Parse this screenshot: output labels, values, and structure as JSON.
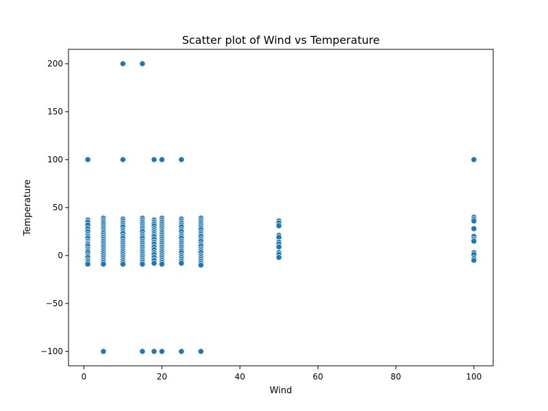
{
  "chart_data": {
    "type": "scatter",
    "title": "Scatter plot of Wind vs Temperature",
    "xlabel": "Wind",
    "ylabel": "Temperature",
    "xlim": [
      -3.95,
      104.95
    ],
    "ylim": [
      -115,
      215
    ],
    "x_ticks": [
      0,
      20,
      40,
      60,
      80,
      100
    ],
    "y_ticks": [
      -100,
      -50,
      0,
      50,
      100,
      150,
      200
    ],
    "grid": false,
    "point_color": "#1f77b4",
    "series": [
      {
        "points": [
          [
            1,
            100
          ],
          [
            1,
            37
          ],
          [
            1,
            35
          ],
          [
            1,
            32
          ],
          [
            1,
            28
          ],
          [
            1,
            25
          ],
          [
            1,
            22
          ],
          [
            1,
            20
          ],
          [
            1,
            18
          ],
          [
            1,
            15
          ],
          [
            1,
            13
          ],
          [
            1,
            12
          ],
          [
            1,
            10
          ],
          [
            1,
            7
          ],
          [
            1,
            5
          ],
          [
            1,
            3
          ],
          [
            1,
            0
          ],
          [
            1,
            -2
          ],
          [
            1,
            -5
          ],
          [
            1,
            -7
          ],
          [
            1,
            -9
          ],
          [
            5,
            39
          ],
          [
            5,
            37
          ],
          [
            5,
            35
          ],
          [
            5,
            33
          ],
          [
            5,
            31
          ],
          [
            5,
            29
          ],
          [
            5,
            27
          ],
          [
            5,
            25
          ],
          [
            5,
            23
          ],
          [
            5,
            21
          ],
          [
            5,
            19
          ],
          [
            5,
            17
          ],
          [
            5,
            15
          ],
          [
            5,
            13
          ],
          [
            5,
            11
          ],
          [
            5,
            9
          ],
          [
            5,
            7
          ],
          [
            5,
            5
          ],
          [
            5,
            3
          ],
          [
            5,
            1
          ],
          [
            5,
            -1
          ],
          [
            5,
            -3
          ],
          [
            5,
            -5
          ],
          [
            5,
            -7
          ],
          [
            5,
            -9
          ],
          [
            5,
            -100
          ],
          [
            10,
            200
          ],
          [
            10,
            100
          ],
          [
            10,
            38
          ],
          [
            10,
            36
          ],
          [
            10,
            34
          ],
          [
            10,
            32
          ],
          [
            10,
            30
          ],
          [
            10,
            27
          ],
          [
            10,
            25
          ],
          [
            10,
            23
          ],
          [
            10,
            20
          ],
          [
            10,
            18
          ],
          [
            10,
            15
          ],
          [
            10,
            13
          ],
          [
            10,
            11
          ],
          [
            10,
            9
          ],
          [
            10,
            7
          ],
          [
            10,
            5
          ],
          [
            10,
            3
          ],
          [
            10,
            1
          ],
          [
            10,
            -1
          ],
          [
            10,
            -3
          ],
          [
            10,
            -5
          ],
          [
            10,
            -7
          ],
          [
            10,
            -9
          ],
          [
            15,
            200
          ],
          [
            15,
            39
          ],
          [
            15,
            37
          ],
          [
            15,
            35
          ],
          [
            15,
            33
          ],
          [
            15,
            31
          ],
          [
            15,
            29
          ],
          [
            15,
            27
          ],
          [
            15,
            25
          ],
          [
            15,
            22
          ],
          [
            15,
            20
          ],
          [
            15,
            18
          ],
          [
            15,
            15
          ],
          [
            15,
            13
          ],
          [
            15,
            11
          ],
          [
            15,
            9
          ],
          [
            15,
            7
          ],
          [
            15,
            5
          ],
          [
            15,
            3
          ],
          [
            15,
            1
          ],
          [
            15,
            -1
          ],
          [
            15,
            -3
          ],
          [
            15,
            -5
          ],
          [
            15,
            -7
          ],
          [
            15,
            -9
          ],
          [
            15,
            -100
          ],
          [
            18,
            100
          ],
          [
            18,
            37
          ],
          [
            18,
            35
          ],
          [
            18,
            33
          ],
          [
            18,
            31
          ],
          [
            18,
            28
          ],
          [
            18,
            26
          ],
          [
            18,
            24
          ],
          [
            18,
            22
          ],
          [
            18,
            20
          ],
          [
            18,
            17
          ],
          [
            18,
            14
          ],
          [
            18,
            12
          ],
          [
            18,
            9
          ],
          [
            18,
            6
          ],
          [
            18,
            3
          ],
          [
            18,
            1
          ],
          [
            18,
            -2
          ],
          [
            18,
            -5
          ],
          [
            18,
            -8
          ],
          [
            18,
            -100
          ],
          [
            20,
            100
          ],
          [
            20,
            39
          ],
          [
            20,
            37
          ],
          [
            20,
            35
          ],
          [
            20,
            33
          ],
          [
            20,
            31
          ],
          [
            20,
            29
          ],
          [
            20,
            27
          ],
          [
            20,
            25
          ],
          [
            20,
            23
          ],
          [
            20,
            21
          ],
          [
            20,
            19
          ],
          [
            20,
            17
          ],
          [
            20,
            15
          ],
          [
            20,
            13
          ],
          [
            20,
            11
          ],
          [
            20,
            9
          ],
          [
            20,
            7
          ],
          [
            20,
            5
          ],
          [
            20,
            3
          ],
          [
            20,
            1
          ],
          [
            20,
            -1
          ],
          [
            20,
            -3
          ],
          [
            20,
            -5
          ],
          [
            20,
            -7
          ],
          [
            20,
            -9
          ],
          [
            20,
            -100
          ],
          [
            25,
            100
          ],
          [
            25,
            38
          ],
          [
            25,
            36
          ],
          [
            25,
            34
          ],
          [
            25,
            32
          ],
          [
            25,
            30
          ],
          [
            25,
            27
          ],
          [
            25,
            25
          ],
          [
            25,
            22
          ],
          [
            25,
            20
          ],
          [
            25,
            18
          ],
          [
            25,
            15
          ],
          [
            25,
            13
          ],
          [
            25,
            11
          ],
          [
            25,
            9
          ],
          [
            25,
            7
          ],
          [
            25,
            5
          ],
          [
            25,
            3
          ],
          [
            25,
            0
          ],
          [
            25,
            -2
          ],
          [
            25,
            -4
          ],
          [
            25,
            -6
          ],
          [
            25,
            -8
          ],
          [
            25,
            -100
          ],
          [
            30,
            39
          ],
          [
            30,
            37
          ],
          [
            30,
            35
          ],
          [
            30,
            33
          ],
          [
            30,
            31
          ],
          [
            30,
            29
          ],
          [
            30,
            27
          ],
          [
            30,
            24
          ],
          [
            30,
            22
          ],
          [
            30,
            20
          ],
          [
            30,
            17
          ],
          [
            30,
            15
          ],
          [
            30,
            12
          ],
          [
            30,
            10
          ],
          [
            30,
            7
          ],
          [
            30,
            5
          ],
          [
            30,
            3
          ],
          [
            30,
            0
          ],
          [
            30,
            -2
          ],
          [
            30,
            -4
          ],
          [
            30,
            -6
          ],
          [
            30,
            -8
          ],
          [
            30,
            -10
          ],
          [
            30,
            -100
          ],
          [
            50,
            36
          ],
          [
            50,
            34
          ],
          [
            50,
            31
          ],
          [
            50,
            21
          ],
          [
            50,
            19
          ],
          [
            50,
            14
          ],
          [
            50,
            12
          ],
          [
            50,
            9
          ],
          [
            50,
            3
          ],
          [
            50,
            1
          ],
          [
            50,
            -2
          ],
          [
            100,
            100
          ],
          [
            100,
            40
          ],
          [
            100,
            38
          ],
          [
            100,
            36
          ],
          [
            100,
            28
          ],
          [
            100,
            20
          ],
          [
            100,
            17
          ],
          [
            100,
            15
          ],
          [
            100,
            3
          ],
          [
            100,
            1
          ],
          [
            100,
            -3
          ],
          [
            100,
            -5
          ]
        ]
      }
    ]
  }
}
